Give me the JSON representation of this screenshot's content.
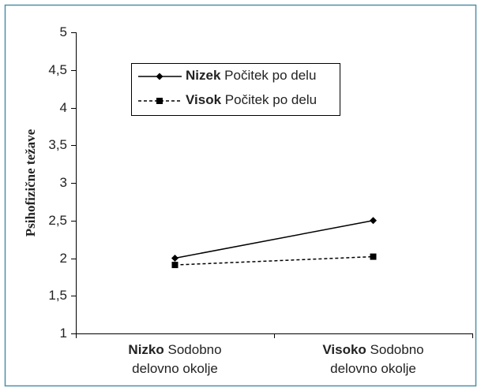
{
  "chart_data": {
    "type": "line",
    "ylabel": "Psihofizične težave",
    "categories": [
      "Nizko Sodobno delovno okolje",
      "Visoko Sodobno delovno okolje"
    ],
    "series": [
      {
        "name": "Nizek Počitek po delu",
        "color": "#000000",
        "marker": "diamond",
        "line_style": "solid",
        "values": [
          2.0,
          2.5
        ]
      },
      {
        "name": "Visok Počitek po delu",
        "color": "#000000",
        "marker": "square",
        "line_style": "dashed",
        "values": [
          1.91,
          2.02
        ]
      }
    ],
    "ylim": [
      1,
      5
    ],
    "yticks": [
      1,
      {
        "value": 1.5,
        "label": "1,5"
      },
      2,
      {
        "value": 2.5,
        "label": "2,5"
      },
      3,
      {
        "value": 3.5,
        "label": "3,5"
      },
      4,
      {
        "value": 4.5,
        "label": "4,5"
      },
      5
    ],
    "grid": false
  }
}
